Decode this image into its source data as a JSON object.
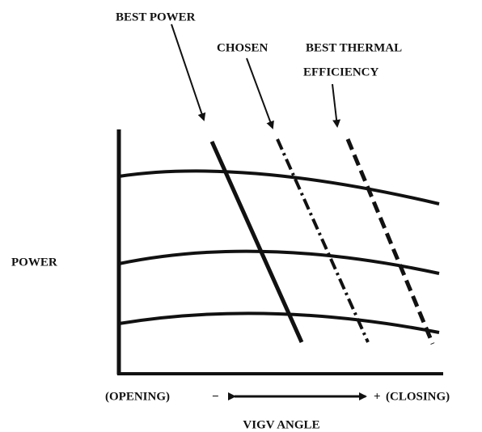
{
  "labels": {
    "best_power": "BEST POWER",
    "chosen": "CHOSEN",
    "best_thermal": "BEST THERMAL",
    "efficiency": "EFFICIENCY",
    "y_axis": "POWER",
    "opening": "(OPENING)",
    "minus": "−",
    "plus": "+",
    "closing": "(CLOSING)",
    "x_axis": "VIGV ANGLE"
  }
}
